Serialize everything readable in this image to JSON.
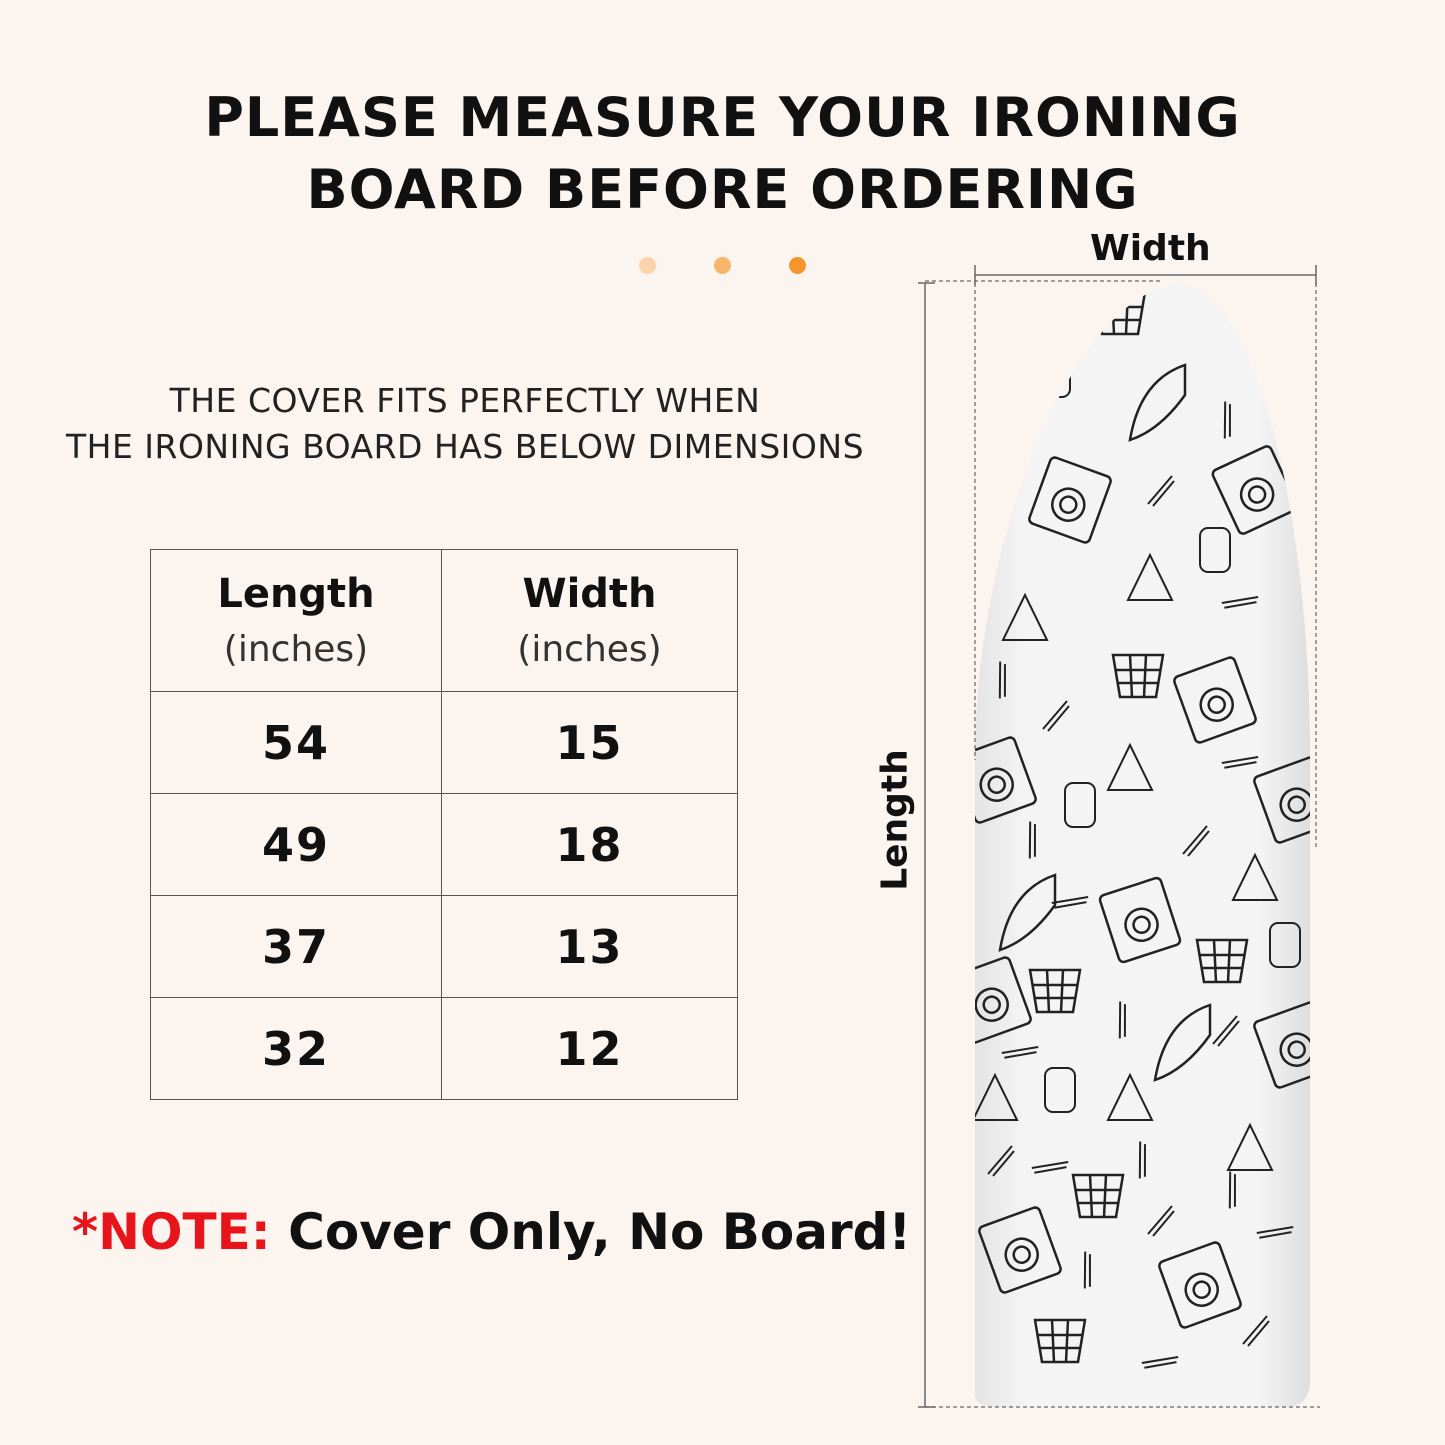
{
  "title": {
    "line1": "PLEASE MEASURE YOUR IRONING",
    "line2": "BOARD BEFORE ORDERING"
  },
  "dots": {
    "colors": [
      "#fcd3ab",
      "#f8b56c",
      "#f5952b"
    ]
  },
  "subtitle": {
    "line1": "THE COVER FITS PERFECTLY WHEN",
    "line2": "THE IRONING BOARD HAS BELOW DIMENSIONS"
  },
  "table": {
    "headers": [
      {
        "label": "Length",
        "unit": "(inches)"
      },
      {
        "label": "Width",
        "unit": "(inches)"
      }
    ],
    "rows": [
      [
        "54",
        "15"
      ],
      [
        "49",
        "18"
      ],
      [
        "37",
        "13"
      ],
      [
        "32",
        "12"
      ]
    ]
  },
  "note": {
    "prefix": "*NOTE:",
    "text": " Cover Only, No Board!",
    "prefix_color": "#e8141b"
  },
  "diagram": {
    "width_label": "Width",
    "length_label": "Length",
    "board_color": "#f0f0f0"
  }
}
